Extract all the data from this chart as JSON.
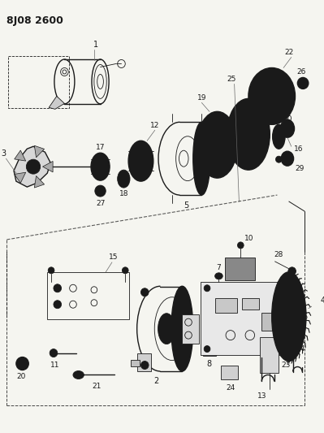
{
  "title": "8J08 2600",
  "bg_color": "#f5f5f0",
  "fig_width": 3.99,
  "fig_height": 5.33,
  "dpi": 100
}
